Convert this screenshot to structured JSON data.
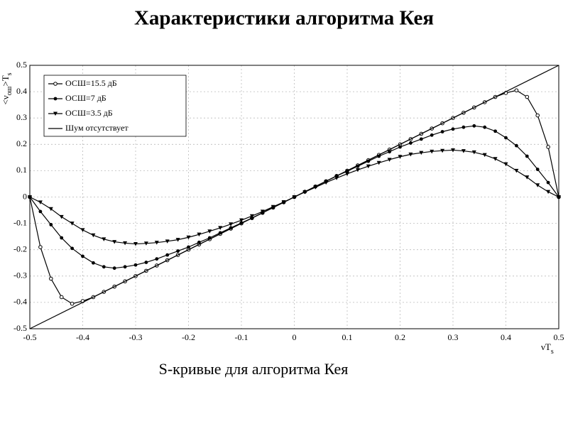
{
  "chart_data": {
    "type": "line",
    "title": "Характеристики алгоритма Кея",
    "caption": "S-кривые для алгоритма Кея",
    "x_label": {
      "main": "νT",
      "sub": "s"
    },
    "y_label": {
      "main": "<ν",
      "sub": "ош",
      "rest": ">T",
      "sub2": "s"
    },
    "xlim": [
      -0.5,
      0.5
    ],
    "ylim": [
      -0.5,
      0.5
    ],
    "xticks": [
      -0.5,
      -0.4,
      -0.3,
      -0.2,
      -0.1,
      0,
      0.1,
      0.2,
      0.3,
      0.4,
      0.5
    ],
    "yticks": [
      -0.5,
      -0.4,
      -0.3,
      -0.2,
      -0.1,
      0,
      0.1,
      0.2,
      0.3,
      0.4,
      0.5
    ],
    "grid": true,
    "legend": "upper left",
    "x": [
      -0.5,
      -0.48,
      -0.46,
      -0.44,
      -0.42,
      -0.4,
      -0.38,
      -0.36,
      -0.34,
      -0.32,
      -0.3,
      -0.28,
      -0.26,
      -0.24,
      -0.22,
      -0.2,
      -0.18,
      -0.16,
      -0.14,
      -0.12,
      -0.1,
      -0.08,
      -0.06,
      -0.04,
      -0.02,
      0,
      0.02,
      0.04,
      0.06,
      0.08,
      0.1,
      0.12,
      0.14,
      0.16,
      0.18,
      0.2,
      0.22,
      0.24,
      0.26,
      0.28,
      0.3,
      0.32,
      0.34,
      0.36,
      0.38,
      0.4,
      0.42,
      0.44,
      0.46,
      0.48,
      0.5
    ],
    "series": [
      {
        "name": "ОСШ=15.5 дБ",
        "color": "#000000",
        "marker": "circle-open",
        "values": [
          0,
          -0.19,
          -0.31,
          -0.38,
          -0.405,
          -0.395,
          -0.38,
          -0.36,
          -0.34,
          -0.32,
          -0.3,
          -0.28,
          -0.26,
          -0.24,
          -0.22,
          -0.2,
          -0.18,
          -0.16,
          -0.14,
          -0.12,
          -0.1,
          -0.08,
          -0.06,
          -0.04,
          -0.02,
          0,
          0.02,
          0.04,
          0.06,
          0.08,
          0.1,
          0.12,
          0.14,
          0.16,
          0.18,
          0.2,
          0.22,
          0.24,
          0.26,
          0.28,
          0.3,
          0.32,
          0.34,
          0.36,
          0.38,
          0.395,
          0.405,
          0.38,
          0.31,
          0.19,
          0
        ]
      },
      {
        "name": "ОСШ=7 дБ",
        "color": "#000000",
        "marker": "circle",
        "values": [
          0,
          -0.055,
          -0.105,
          -0.155,
          -0.195,
          -0.225,
          -0.25,
          -0.265,
          -0.27,
          -0.265,
          -0.258,
          -0.248,
          -0.235,
          -0.22,
          -0.205,
          -0.19,
          -0.172,
          -0.155,
          -0.136,
          -0.117,
          -0.098,
          -0.08,
          -0.06,
          -0.04,
          -0.02,
          0,
          0.02,
          0.04,
          0.06,
          0.08,
          0.098,
          0.117,
          0.136,
          0.155,
          0.172,
          0.19,
          0.205,
          0.22,
          0.235,
          0.248,
          0.258,
          0.265,
          0.27,
          0.265,
          0.25,
          0.225,
          0.195,
          0.155,
          0.105,
          0.055,
          0
        ]
      },
      {
        "name": "ОСШ=3.5 дБ",
        "color": "#000000",
        "marker": "triangle-down",
        "values": [
          0,
          -0.02,
          -0.045,
          -0.075,
          -0.1,
          -0.125,
          -0.145,
          -0.16,
          -0.17,
          -0.175,
          -0.178,
          -0.176,
          -0.173,
          -0.168,
          -0.162,
          -0.153,
          -0.142,
          -0.13,
          -0.117,
          -0.103,
          -0.088,
          -0.072,
          -0.055,
          -0.037,
          -0.019,
          0,
          0.019,
          0.037,
          0.055,
          0.072,
          0.088,
          0.103,
          0.117,
          0.13,
          0.142,
          0.153,
          0.162,
          0.168,
          0.173,
          0.176,
          0.178,
          0.175,
          0.17,
          0.16,
          0.145,
          0.125,
          0.1,
          0.075,
          0.045,
          0.02,
          0
        ]
      },
      {
        "name": "Шум отсутствует",
        "color": "#000000",
        "marker": "none",
        "x": [
          -0.5,
          0.5
        ],
        "values": [
          -0.5,
          0.5
        ]
      }
    ]
  }
}
